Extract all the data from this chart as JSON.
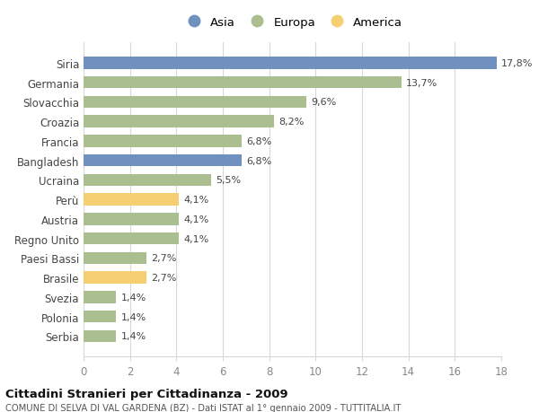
{
  "categories": [
    "Siria",
    "Germania",
    "Slovacchia",
    "Croazia",
    "Francia",
    "Bangladesh",
    "Ucraina",
    "Perù",
    "Austria",
    "Regno Unito",
    "Paesi Bassi",
    "Brasile",
    "Svezia",
    "Polonia",
    "Serbia"
  ],
  "values": [
    17.8,
    13.7,
    9.6,
    8.2,
    6.8,
    6.8,
    5.5,
    4.1,
    4.1,
    4.1,
    2.7,
    2.7,
    1.4,
    1.4,
    1.4
  ],
  "labels": [
    "17,8%",
    "13,7%",
    "9,6%",
    "8,2%",
    "6,8%",
    "6,8%",
    "5,5%",
    "4,1%",
    "4,1%",
    "4,1%",
    "2,7%",
    "2,7%",
    "1,4%",
    "1,4%",
    "1,4%"
  ],
  "continents": [
    "Asia",
    "Europa",
    "Europa",
    "Europa",
    "Europa",
    "Asia",
    "Europa",
    "America",
    "Europa",
    "Europa",
    "Europa",
    "America",
    "Europa",
    "Europa",
    "Europa"
  ],
  "colors": {
    "Asia": "#7090bf",
    "Europa": "#abbe8f",
    "America": "#f5cf72"
  },
  "legend_order": [
    "Asia",
    "Europa",
    "America"
  ],
  "xlim": [
    0,
    18
  ],
  "xticks": [
    0,
    2,
    4,
    6,
    8,
    10,
    12,
    14,
    16,
    18
  ],
  "title": "Cittadini Stranieri per Cittadinanza - 2009",
  "subtitle": "COMUNE DI SELVA DI VAL GARDENA (BZ) - Dati ISTAT al 1° gennaio 2009 - TUTTITALIA.IT",
  "fig_bg": "#ffffff",
  "plot_bg": "#ffffff",
  "grid_color": "#d8d8d8",
  "label_color": "#555555",
  "tick_color": "#888888"
}
